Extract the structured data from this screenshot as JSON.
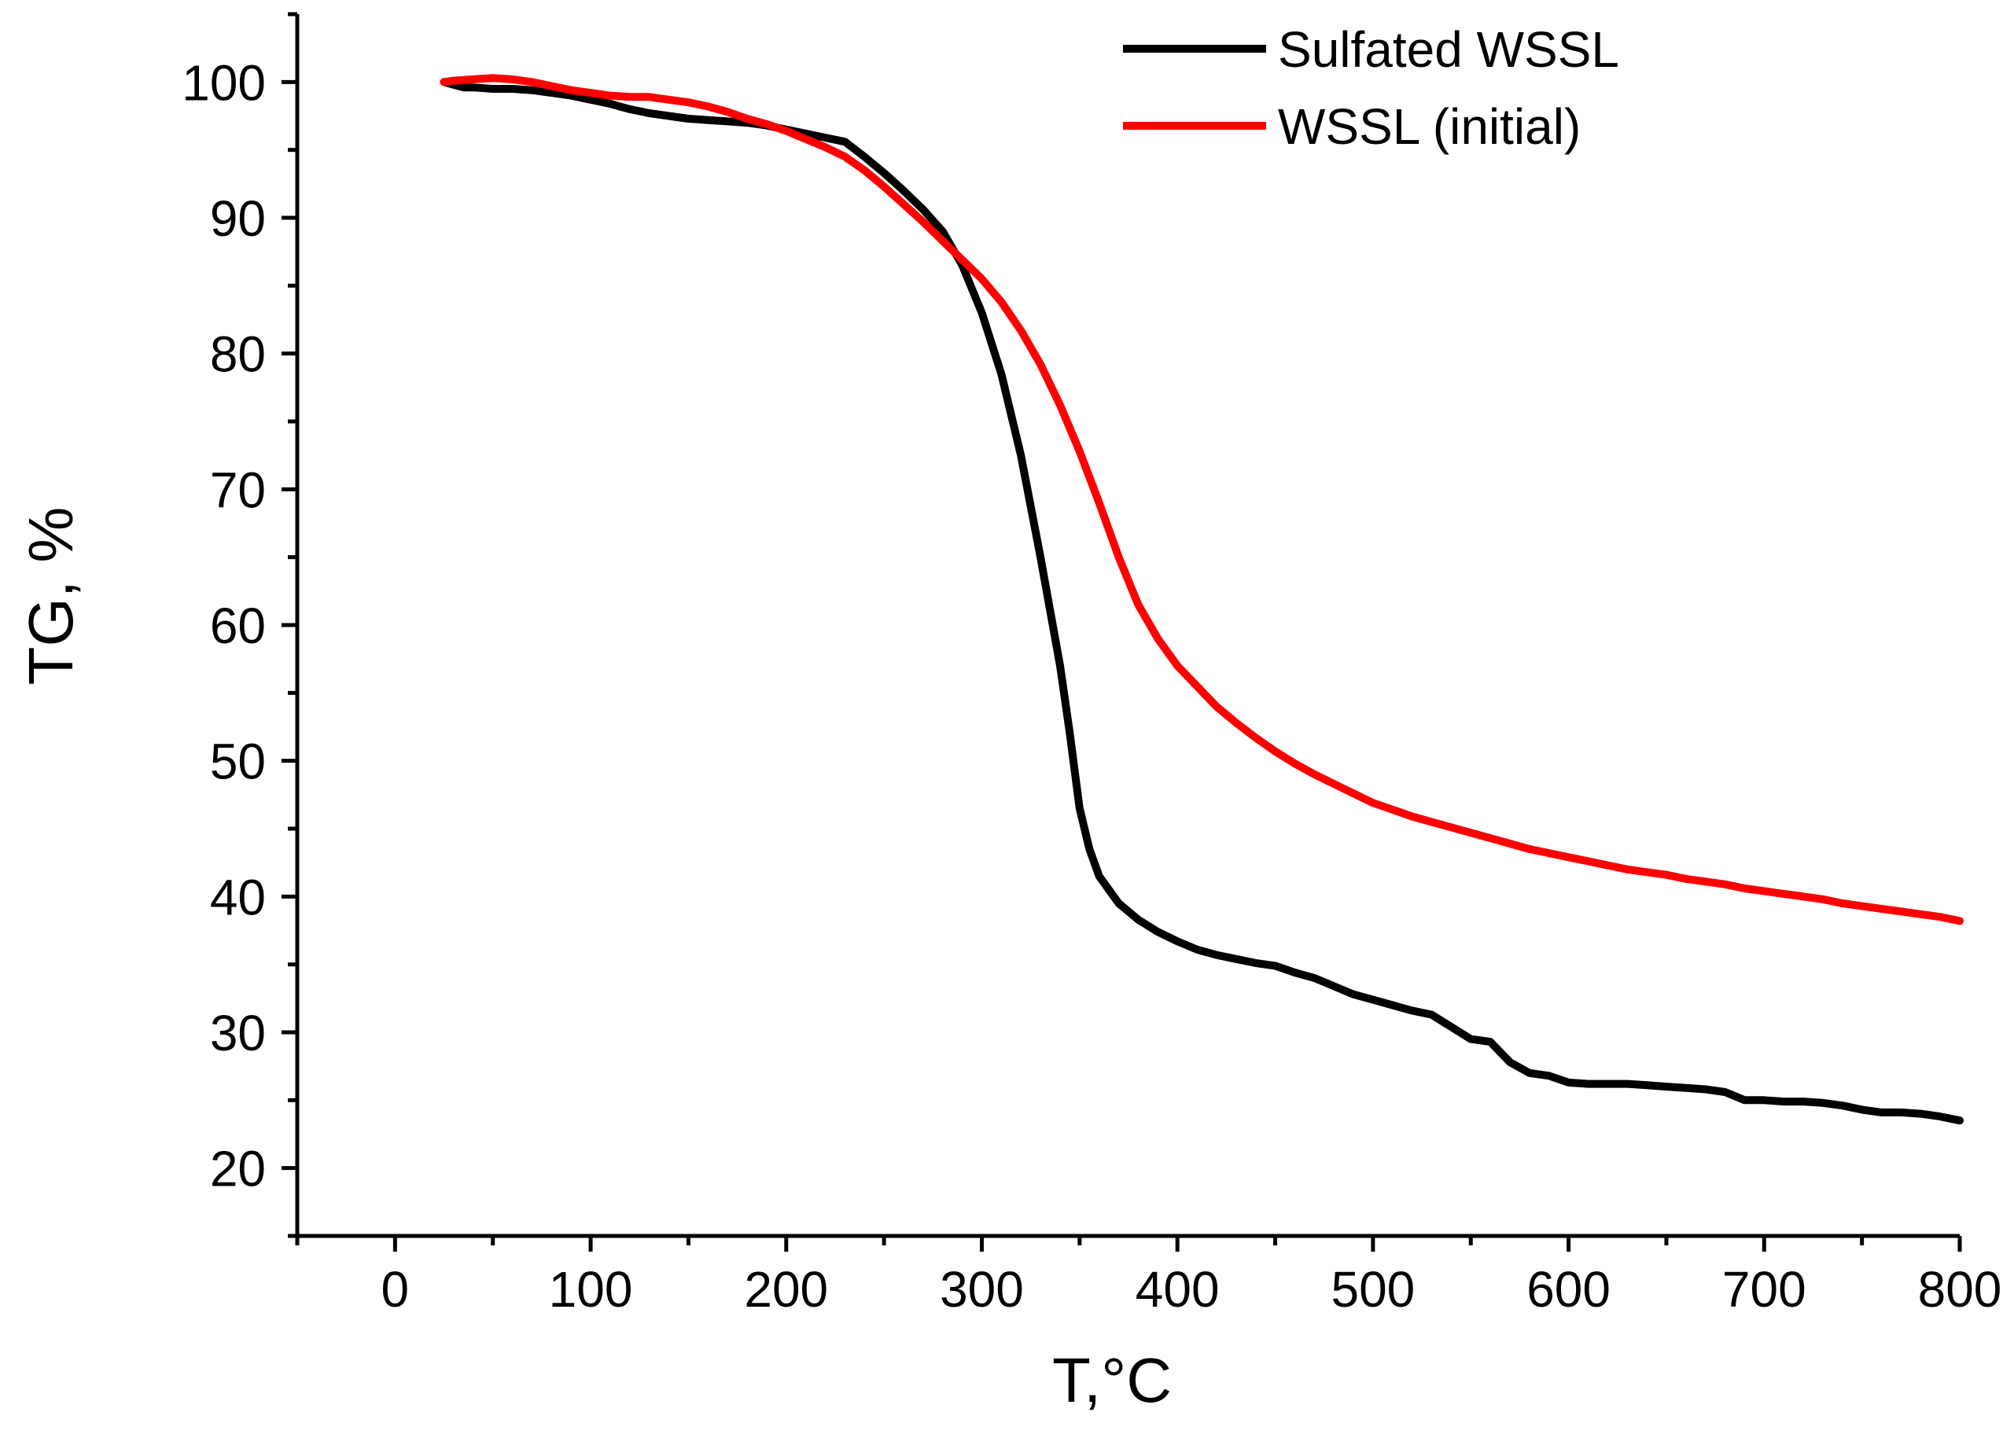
{
  "chart_data": {
    "type": "line",
    "title": "",
    "xlabel": "T,°C",
    "ylabel": "TG, %",
    "xlim": [
      -50,
      800
    ],
    "ylim": [
      15,
      105
    ],
    "x_ticks": [
      0,
      100,
      200,
      300,
      400,
      500,
      600,
      700,
      800
    ],
    "y_ticks": [
      20,
      30,
      40,
      50,
      60,
      70,
      80,
      90,
      100
    ],
    "grid": false,
    "legend_position": "top-right",
    "series": [
      {
        "name": "Sulfated WSSL",
        "color": "#000000",
        "x": [
          25,
          30,
          35,
          40,
          50,
          60,
          70,
          80,
          90,
          100,
          110,
          120,
          130,
          140,
          150,
          160,
          170,
          180,
          190,
          200,
          210,
          220,
          230,
          240,
          250,
          260,
          270,
          280,
          290,
          300,
          310,
          320,
          330,
          340,
          345,
          350,
          355,
          360,
          365,
          370,
          380,
          390,
          400,
          410,
          420,
          430,
          440,
          450,
          460,
          470,
          480,
          490,
          500,
          510,
          520,
          530,
          540,
          550,
          560,
          570,
          580,
          590,
          600,
          610,
          620,
          630,
          640,
          650,
          660,
          670,
          680,
          690,
          700,
          710,
          720,
          730,
          740,
          750,
          760,
          770,
          780,
          790,
          800
        ],
        "values": [
          100.0,
          99.8,
          99.6,
          99.6,
          99.5,
          99.5,
          99.4,
          99.2,
          99.0,
          98.7,
          98.4,
          98.0,
          97.7,
          97.5,
          97.3,
          97.2,
          97.1,
          97.0,
          96.8,
          96.5,
          96.2,
          95.9,
          95.6,
          94.5,
          93.3,
          92.0,
          90.6,
          89.0,
          86.5,
          83.0,
          78.5,
          72.5,
          65.0,
          57.0,
          52.0,
          46.5,
          43.5,
          41.5,
          40.5,
          39.5,
          38.3,
          37.4,
          36.7,
          36.1,
          35.7,
          35.4,
          35.1,
          34.9,
          34.4,
          34.0,
          33.4,
          32.8,
          32.4,
          32.0,
          31.6,
          31.3,
          30.4,
          29.5,
          29.3,
          27.8,
          27.0,
          26.8,
          26.3,
          26.2,
          26.2,
          26.2,
          26.1,
          26.0,
          25.9,
          25.8,
          25.6,
          25.0,
          25.0,
          24.9,
          24.9,
          24.8,
          24.6,
          24.3,
          24.1,
          24.1,
          24.0,
          23.8,
          23.5
        ]
      },
      {
        "name": "WSSL (initial)",
        "color": "#ff0000",
        "x": [
          25,
          30,
          40,
          50,
          60,
          70,
          80,
          90,
          100,
          110,
          120,
          130,
          140,
          150,
          160,
          170,
          180,
          190,
          200,
          210,
          220,
          230,
          240,
          250,
          260,
          270,
          280,
          290,
          300,
          310,
          320,
          330,
          340,
          350,
          360,
          370,
          380,
          390,
          400,
          410,
          420,
          430,
          440,
          450,
          460,
          470,
          480,
          490,
          500,
          510,
          520,
          530,
          540,
          550,
          560,
          570,
          580,
          590,
          600,
          610,
          620,
          630,
          640,
          650,
          660,
          670,
          680,
          690,
          700,
          710,
          720,
          730,
          740,
          750,
          760,
          770,
          780,
          790,
          800
        ],
        "values": [
          100.0,
          100.1,
          100.2,
          100.3,
          100.2,
          100.0,
          99.7,
          99.4,
          99.2,
          99.0,
          98.9,
          98.9,
          98.7,
          98.5,
          98.2,
          97.8,
          97.3,
          96.9,
          96.4,
          95.8,
          95.2,
          94.5,
          93.5,
          92.3,
          91.0,
          89.7,
          88.3,
          86.9,
          85.5,
          83.8,
          81.7,
          79.2,
          76.2,
          72.8,
          69.0,
          65.0,
          61.5,
          59.0,
          57.0,
          55.5,
          54.0,
          52.8,
          51.7,
          50.7,
          49.8,
          49.0,
          48.3,
          47.6,
          46.9,
          46.4,
          45.9,
          45.5,
          45.1,
          44.7,
          44.3,
          43.9,
          43.5,
          43.2,
          42.9,
          42.6,
          42.3,
          42.0,
          41.8,
          41.6,
          41.3,
          41.1,
          40.9,
          40.6,
          40.4,
          40.2,
          40.0,
          39.8,
          39.5,
          39.3,
          39.1,
          38.9,
          38.7,
          38.5,
          38.2
        ]
      }
    ]
  }
}
